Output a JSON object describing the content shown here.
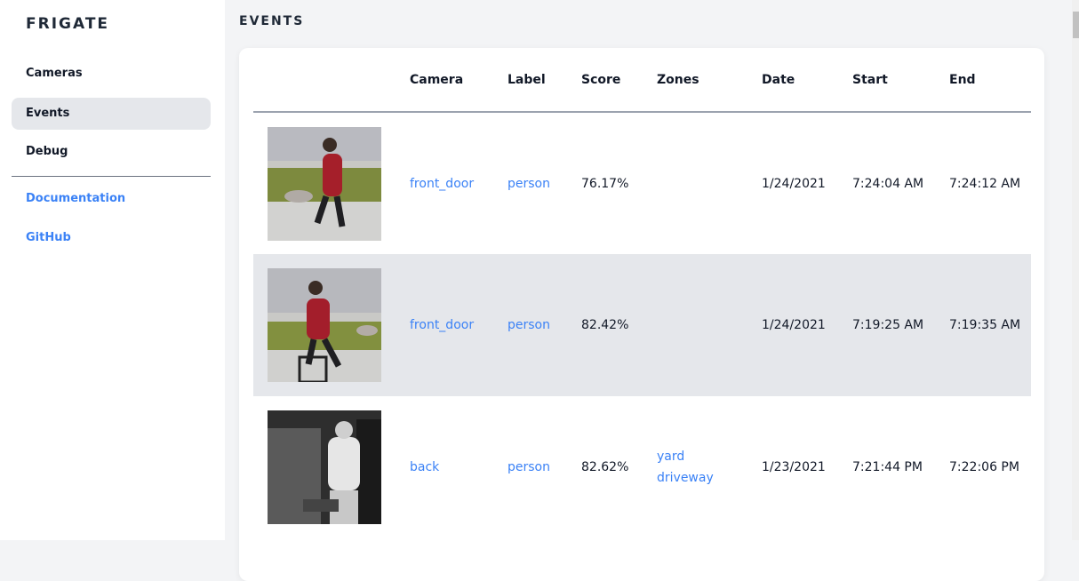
{
  "sidebar": {
    "logo": "FRIGATE",
    "items": [
      {
        "label": "Cameras"
      },
      {
        "label": "Events",
        "active": true
      },
      {
        "label": "Debug"
      }
    ],
    "links": [
      {
        "label": "Documentation"
      },
      {
        "label": "GitHub"
      }
    ]
  },
  "page": {
    "title": "EVENTS"
  },
  "table": {
    "headers": [
      "",
      "Camera",
      "Label",
      "Score",
      "Zones",
      "Date",
      "Start",
      "End"
    ],
    "rows": [
      {
        "camera": "front_door",
        "label": "person",
        "score": "76.17%",
        "zones": [
          "",
          ""
        ],
        "date": "1/24/2021",
        "start": "7:24:04 AM",
        "end": "7:24:12 AM"
      },
      {
        "camera": "front_door",
        "label": "person",
        "score": "82.42%",
        "zones": [
          "",
          ""
        ],
        "date": "1/24/2021",
        "start": "7:19:25 AM",
        "end": "7:19:35 AM"
      },
      {
        "camera": "back",
        "label": "person",
        "score": "82.62%",
        "zones": [
          "yard",
          "driveway"
        ],
        "date": "1/23/2021",
        "start": "7:21:44 PM",
        "end": "7:22:06 PM"
      }
    ]
  },
  "colors": {
    "accent": "#3b82f6",
    "active_bg": "#e5e7eb"
  }
}
